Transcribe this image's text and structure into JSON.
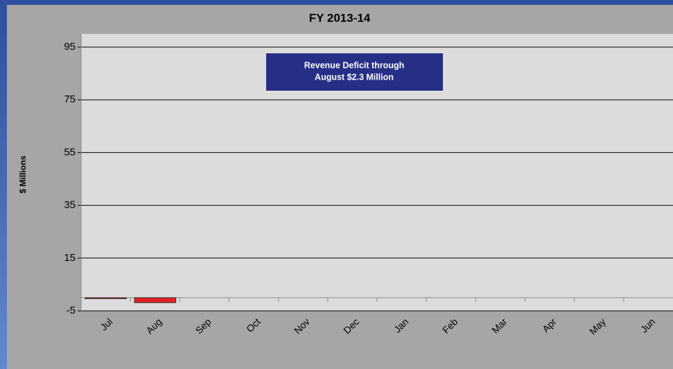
{
  "chart_data": {
    "type": "bar",
    "title": "FY 2013-14",
    "y_label": "$ Millions",
    "annotation": [
      "Revenue Deficit through",
      "August $2.3 Million"
    ],
    "categories": [
      "Jul",
      "Aug",
      "Sep",
      "Oct",
      "Nov",
      "Dec",
      "Jan",
      "Feb",
      "Mar",
      "Apr",
      "May",
      "Jun"
    ],
    "values": [
      -0.4,
      -1.9,
      null,
      null,
      null,
      null,
      null,
      null,
      null,
      null,
      null,
      null
    ],
    "color": "#e32222",
    "ylim": [
      -5,
      100
    ],
    "yticks": [
      -5,
      15,
      35,
      55,
      75,
      95
    ],
    "grid": true
  }
}
